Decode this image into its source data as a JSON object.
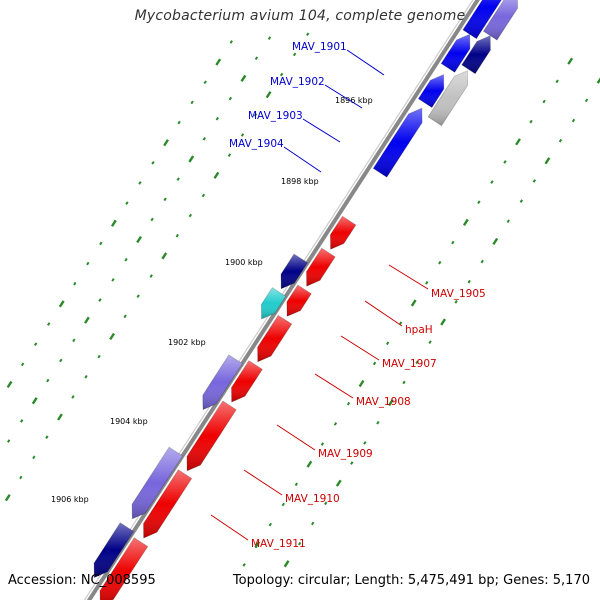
{
  "title": "Mycobacterium avium 104, complete genome",
  "footer": {
    "accession": "Accession: NC_008595",
    "summary": "Topology: circular; Length: 5,475,491 bp; Genes: 5,170"
  },
  "colors": {
    "forward": "#ee0000",
    "reverse": "#0000ee",
    "reverse_dark": "#000088",
    "reverse_light": "#7766dd",
    "highlight_cyan": "#22cccc",
    "pale": "#c0c0c0",
    "backbone": "#888888",
    "tick": "#2a8a2a",
    "label_forward": "#cc0000",
    "label_reverse": "#0000cc"
  },
  "ticks": [
    {
      "label": "1896 kbp"
    },
    {
      "label": "1898 kbp"
    },
    {
      "label": "1900 kbp"
    },
    {
      "label": "1902 kbp"
    },
    {
      "label": "1904 kbp"
    },
    {
      "label": "1906 kbp"
    }
  ],
  "genes": [
    {
      "name": "MAV_1901",
      "strand": "reverse"
    },
    {
      "name": "MAV_1902",
      "strand": "reverse"
    },
    {
      "name": "MAV_1903",
      "strand": "reverse"
    },
    {
      "name": "MAV_1904",
      "strand": "reverse"
    },
    {
      "name": "MAV_1905",
      "strand": "forward"
    },
    {
      "name": "hpaH",
      "strand": "forward"
    },
    {
      "name": "MAV_1907",
      "strand": "forward"
    },
    {
      "name": "MAV_1908",
      "strand": "forward"
    },
    {
      "name": "MAV_1909",
      "strand": "forward"
    },
    {
      "name": "MAV_1910",
      "strand": "forward"
    },
    {
      "name": "MAV_1911",
      "strand": "forward"
    }
  ]
}
